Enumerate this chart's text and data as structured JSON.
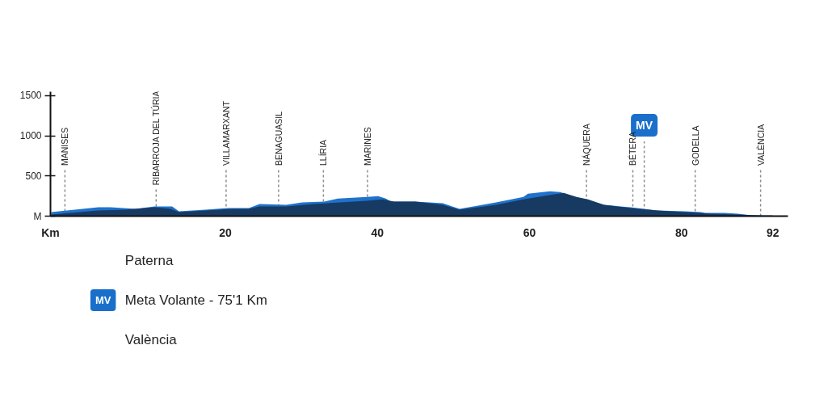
{
  "chart_data": {
    "type": "area",
    "xlim": [
      -3,
      94
    ],
    "xticks": [
      {
        "value": -3,
        "label": "Km"
      },
      20,
      40,
      60,
      80,
      92
    ],
    "ylim": [
      0,
      1550
    ],
    "yticks": [
      {
        "value": 0,
        "label": "M"
      },
      500,
      1000,
      1500
    ],
    "grid": false,
    "series": [
      {
        "color": "#1f72cc",
        "x": [
          -2.9,
          3.3,
          4.9,
          8.2,
          10.7,
          13.0,
          13.9,
          17.4,
          20.3,
          23.1,
          24.5,
          28.0,
          30.1,
          33.0,
          34.8,
          38.6,
          40.1,
          41.1,
          41.8,
          45.0,
          48.6,
          50.8,
          55.6,
          59.2,
          59.8,
          62.7,
          64.1,
          66.2,
          68.0,
          69.8,
          73.3,
          76.8,
          80.4,
          82.5,
          83.1,
          85.7,
          87.4,
          89.2,
          92.0
        ],
        "values": [
          50,
          110,
          110,
          90,
          120,
          120,
          60,
          80,
          100,
          100,
          150,
          140,
          170,
          180,
          220,
          240,
          250,
          220,
          180,
          180,
          160,
          90,
          170,
          240,
          280,
          310,
          300,
          220,
          190,
          140,
          110,
          70,
          60,
          50,
          40,
          40,
          30,
          10,
          10
        ]
      },
      {
        "color": "#173a63",
        "x": [
          -2.9,
          3.3,
          6.8,
          10.7,
          12.8,
          13.9,
          17.4,
          21.0,
          23.1,
          24.5,
          28.0,
          31.6,
          35.1,
          38.6,
          40.7,
          42.2,
          45.0,
          48.6,
          50.8,
          55.6,
          59.2,
          62.4,
          64.5,
          66.2,
          67.7,
          69.8,
          73.3,
          76.8,
          80.4,
          82.5,
          83.9,
          87.4,
          92.0
        ],
        "values": [
          20,
          70,
          80,
          110,
          90,
          50,
          70,
          90,
          90,
          120,
          120,
          150,
          170,
          190,
          210,
          180,
          180,
          140,
          80,
          140,
          210,
          260,
          290,
          240,
          210,
          140,
          100,
          70,
          50,
          40,
          30,
          20,
          0
        ]
      }
    ],
    "ref_lines": [
      {
        "axis": "x",
        "value": 75.1,
        "label": "MV",
        "color": "#8a8a8a",
        "line_style": "dashed"
      },
      {
        "axis": "x",
        "value": -1.1,
        "label": "MANISES",
        "color": "#8a8a8a",
        "line_style": "dashed"
      },
      {
        "axis": "x",
        "value": 10.9,
        "label": "RIBARROJA DEL TÚRIA",
        "color": "#8a8a8a",
        "line_style": "dashed"
      },
      {
        "axis": "x",
        "value": 20.1,
        "label": "VILLAMARXANT",
        "color": "#8a8a8a",
        "line_style": "dashed"
      },
      {
        "axis": "x",
        "value": 27.0,
        "label": "BENAGUASIL",
        "color": "#8a8a8a",
        "line_style": "dashed"
      },
      {
        "axis": "x",
        "value": 32.9,
        "label": "LLÍRIA",
        "color": "#8a8a8a",
        "line_style": "dashed"
      },
      {
        "axis": "x",
        "value": 38.7,
        "label": "MARINES",
        "color": "#8a8a8a",
        "line_style": "dashed"
      },
      {
        "axis": "x",
        "value": 67.5,
        "label": "NÁQUERA",
        "color": "#8a8a8a",
        "line_style": "dashed"
      },
      {
        "axis": "x",
        "value": 73.6,
        "label": "BÉTERA",
        "color": "#8a8a8a",
        "line_style": "dashed"
      },
      {
        "axis": "x",
        "value": 81.8,
        "label": "GODELLA",
        "color": "#8a8a8a",
        "line_style": "dashed"
      },
      {
        "axis": "x",
        "value": 90.4,
        "label": "VALÈNCIA",
        "color": "#8a8a8a",
        "line_style": "dashed"
      }
    ],
    "annotations": [
      "Paterna",
      "Meta Volante - 75'1 Km",
      "València"
    ]
  }
}
